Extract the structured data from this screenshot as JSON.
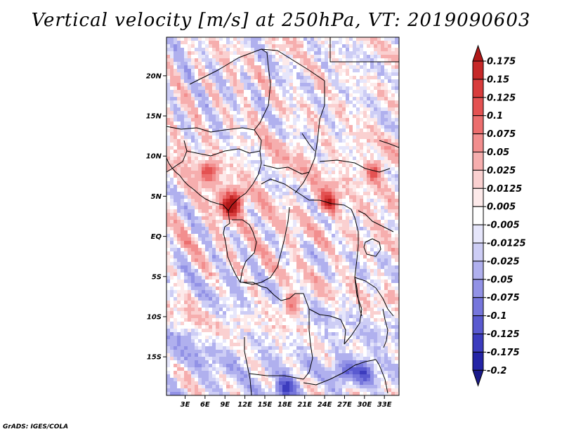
{
  "title": "Vertical velocity [m/s] at 250hPa, VT: 2019090603",
  "credit": "GrADS: IGES/COLA",
  "chart_data": {
    "type": "heatmap",
    "title": "Vertical velocity [m/s] at 250hPa, VT: 2019090603",
    "variable": "vertical velocity",
    "units": "m/s",
    "level": "250hPa",
    "valid_time": "2019090603",
    "x_ticks": [
      "3E",
      "6E",
      "9E",
      "12E",
      "15E",
      "18E",
      "21E",
      "24E",
      "27E",
      "30E",
      "33E"
    ],
    "x_tick_values": [
      3,
      6,
      9,
      12,
      15,
      18,
      21,
      24,
      27,
      30,
      33
    ],
    "y_ticks": [
      "20N",
      "15N",
      "10N",
      "5N",
      "EQ",
      "5S",
      "10S",
      "15S"
    ],
    "y_tick_values": [
      20,
      15,
      10,
      5,
      0,
      -5,
      -10,
      -15
    ],
    "xlim": [
      0.2,
      35.2
    ],
    "ylim": [
      -19.8,
      24.8
    ],
    "colorbar": {
      "labels": [
        "0.175",
        "0.15",
        "0.125",
        "0.1",
        "0.075",
        "0.05",
        "0.025",
        "0.0125",
        "0.005",
        "-0.005",
        "-0.0125",
        "-0.025",
        "-0.05",
        "-0.075",
        "-0.1",
        "-0.125",
        "-0.175",
        "-0.2"
      ],
      "colors": [
        "#b01818",
        "#c62828",
        "#d83c3c",
        "#e45252",
        "#ec6e6e",
        "#f28e8e",
        "#f6aeae",
        "#fad0d0",
        "#fdeaea",
        "#ffffff",
        "#e6e6fb",
        "#cdcdf5",
        "#b0b0ee",
        "#9292e6",
        "#7676dc",
        "#5a5ad0",
        "#3c3cbe",
        "#2424a6",
        "#1a1a8a"
      ],
      "extend": "both"
    },
    "hotspots": [
      {
        "lon": 9.5,
        "lat": 3.5,
        "value": 0.15
      },
      {
        "lon": 24.5,
        "lat": 4.3,
        "value": 0.15
      },
      {
        "lon": 31.5,
        "lat": 8,
        "value": 0.1
      },
      {
        "lon": 6.5,
        "lat": 8,
        "value": 0.1
      },
      {
        "lon": 19,
        "lat": -8.5,
        "value": 0.1
      },
      {
        "lon": 10.5,
        "lat": 4.5,
        "value": 0.125
      }
    ],
    "coolspots": [
      {
        "lon": 18,
        "lat": -19,
        "value": -0.125
      },
      {
        "lon": 30,
        "lat": -17,
        "value": -0.1
      },
      {
        "lon": 27,
        "lat": -17,
        "value": -0.075
      }
    ]
  }
}
